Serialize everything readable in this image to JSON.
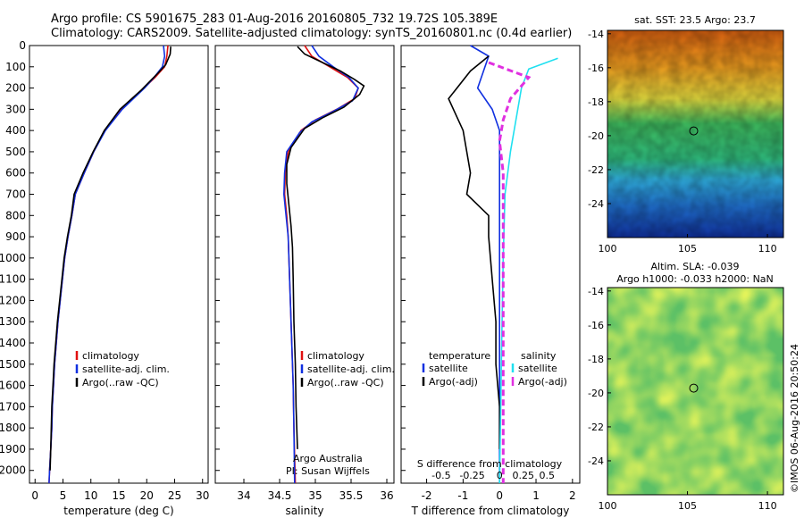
{
  "title": {
    "line1": "Argo profile: CS 5901675_283 01-Aug-2016 20160805_732 19.72S 105.389E",
    "line2": "Climatology: CARS2009. Satellite-adjusted climatology: synTS_20160801.nc (0.4d earlier)"
  },
  "colors": {
    "climatology": "#e01010",
    "satellite": "#1030e0",
    "argo": "#000000",
    "satellite_salinity": "#20e0f0",
    "argo_salinity_adj": "#e030e0"
  },
  "chart_data": [
    {
      "name": "temperature",
      "type": "line",
      "xlabel": "temperature (deg C)",
      "ylabel": "",
      "xlim": [
        -1,
        31
      ],
      "ylim": [
        2060,
        0
      ],
      "xticks": [
        0,
        5,
        10,
        15,
        20,
        25,
        30
      ],
      "yticks": [
        0,
        100,
        200,
        300,
        400,
        500,
        600,
        700,
        800,
        900,
        1000,
        1100,
        1200,
        1300,
        1400,
        1500,
        1600,
        1700,
        1800,
        1900,
        2000
      ],
      "legend": [
        "climatology",
        "satellite-adj. clim.",
        "Argo(..raw -QC)"
      ],
      "series": [
        {
          "name": "climatology",
          "color": "#e01010",
          "points": [
            [
              23.8,
              0
            ],
            [
              23.6,
              50
            ],
            [
              23.2,
              100
            ],
            [
              21.5,
              150
            ],
            [
              19.5,
              200
            ],
            [
              15.5,
              300
            ],
            [
              12.5,
              400
            ],
            [
              10.5,
              500
            ],
            [
              8.8,
              600
            ],
            [
              7.2,
              700
            ],
            [
              6.6,
              800
            ],
            [
              5.9,
              900
            ],
            [
              5.3,
              1000
            ],
            [
              4.9,
              1100
            ],
            [
              4.5,
              1200
            ],
            [
              4.1,
              1300
            ],
            [
              3.8,
              1400
            ],
            [
              3.5,
              1500
            ],
            [
              3.3,
              1600
            ],
            [
              3.1,
              1700
            ],
            [
              3.0,
              1800
            ],
            [
              2.8,
              1900
            ],
            [
              2.6,
              2000
            ],
            [
              2.5,
              2060
            ]
          ]
        },
        {
          "name": "satellite-adj. clim.",
          "color": "#1030e0",
          "points": [
            [
              23.0,
              0
            ],
            [
              23.2,
              50
            ],
            [
              22.8,
              100
            ],
            [
              21.3,
              150
            ],
            [
              19.6,
              200
            ],
            [
              15.6,
              300
            ],
            [
              12.6,
              400
            ],
            [
              10.5,
              500
            ],
            [
              8.8,
              600
            ],
            [
              7.2,
              700
            ],
            [
              6.6,
              800
            ],
            [
              5.9,
              900
            ],
            [
              5.3,
              1000
            ],
            [
              4.9,
              1100
            ],
            [
              4.5,
              1200
            ],
            [
              4.1,
              1300
            ],
            [
              3.8,
              1400
            ],
            [
              3.5,
              1500
            ],
            [
              3.3,
              1600
            ],
            [
              3.1,
              1700
            ],
            [
              3.0,
              1800
            ],
            [
              2.8,
              1900
            ],
            [
              2.6,
              2000
            ],
            [
              2.5,
              2060
            ]
          ]
        },
        {
          "name": "Argo(..raw -QC)",
          "color": "#000000",
          "points": [
            [
              24.3,
              5
            ],
            [
              24.2,
              40
            ],
            [
              23.4,
              90
            ],
            [
              22.0,
              130
            ],
            [
              20.5,
              170
            ],
            [
              19.0,
              210
            ],
            [
              15.2,
              300
            ],
            [
              12.4,
              400
            ],
            [
              10.4,
              500
            ],
            [
              8.6,
              600
            ],
            [
              7.0,
              700
            ],
            [
              6.5,
              800
            ],
            [
              5.8,
              900
            ],
            [
              5.2,
              1000
            ],
            [
              4.8,
              1100
            ],
            [
              4.4,
              1200
            ],
            [
              4.0,
              1300
            ],
            [
              3.7,
              1400
            ],
            [
              3.4,
              1500
            ],
            [
              3.2,
              1600
            ],
            [
              3.0,
              1700
            ],
            [
              2.9,
              1800
            ],
            [
              2.8,
              1900
            ],
            [
              2.7,
              2000
            ]
          ]
        }
      ]
    },
    {
      "name": "salinity",
      "type": "line",
      "xlabel": "salinity",
      "ylabel": "",
      "xlim": [
        33.6,
        36.1
      ],
      "ylim": [
        2060,
        0
      ],
      "xticks": [
        34,
        34.5,
        35,
        35.5,
        36
      ],
      "legend": [
        "climatology",
        "satellite-adj. clim.",
        "Argo(..raw -QC)"
      ],
      "annotations": [
        "Argo Australia",
        "PI: Susan Wijffels"
      ],
      "series": [
        {
          "name": "climatology",
          "color": "#e01010",
          "points": [
            [
              34.85,
              0
            ],
            [
              34.95,
              50
            ],
            [
              35.2,
              100
            ],
            [
              35.45,
              150
            ],
            [
              35.6,
              200
            ],
            [
              35.55,
              250
            ],
            [
              35.3,
              300
            ],
            [
              35.0,
              350
            ],
            [
              34.8,
              400
            ],
            [
              34.62,
              500
            ],
            [
              34.58,
              600
            ],
            [
              34.57,
              700
            ],
            [
              34.6,
              800
            ],
            [
              34.62,
              900
            ],
            [
              34.63,
              1000
            ],
            [
              34.65,
              1200
            ],
            [
              34.67,
              1400
            ],
            [
              34.69,
              1600
            ],
            [
              34.7,
              1800
            ],
            [
              34.72,
              2060
            ]
          ]
        },
        {
          "name": "satellite-adj. clim.",
          "color": "#1030e0",
          "points": [
            [
              34.95,
              0
            ],
            [
              35.05,
              50
            ],
            [
              35.25,
              100
            ],
            [
              35.47,
              150
            ],
            [
              35.6,
              200
            ],
            [
              35.52,
              260
            ],
            [
              35.25,
              310
            ],
            [
              34.95,
              360
            ],
            [
              34.78,
              410
            ],
            [
              34.6,
              500
            ],
            [
              34.57,
              600
            ],
            [
              34.56,
              700
            ],
            [
              34.59,
              800
            ],
            [
              34.62,
              900
            ],
            [
              34.63,
              1000
            ],
            [
              34.65,
              1200
            ],
            [
              34.67,
              1400
            ],
            [
              34.69,
              1600
            ],
            [
              34.7,
              1800
            ],
            [
              34.71,
              2060
            ]
          ]
        },
        {
          "name": "Argo(..raw -QC)",
          "color": "#000000",
          "points": [
            [
              34.75,
              5
            ],
            [
              34.85,
              40
            ],
            [
              35.1,
              80
            ],
            [
              35.35,
              120
            ],
            [
              35.55,
              160
            ],
            [
              35.68,
              190
            ],
            [
              35.62,
              230
            ],
            [
              35.4,
              290
            ],
            [
              35.1,
              340
            ],
            [
              34.85,
              390
            ],
            [
              34.66,
              480
            ],
            [
              34.6,
              560
            ],
            [
              34.6,
              650
            ],
            [
              34.63,
              750
            ],
            [
              34.66,
              850
            ],
            [
              34.68,
              950
            ],
            [
              34.69,
              1100
            ],
            [
              34.7,
              1300
            ],
            [
              34.72,
              1500
            ],
            [
              34.73,
              1700
            ],
            [
              34.75,
              1900
            ]
          ]
        }
      ]
    },
    {
      "name": "difference",
      "type": "line",
      "xlabel": "T difference from climatology",
      "xlabel_top": "S difference from climatology",
      "xlim": [
        -2.7,
        2.2
      ],
      "ylim": [
        2060,
        0
      ],
      "xticks": [
        -2,
        -1,
        0,
        1,
        2
      ],
      "xticks_top": [
        "-0.5",
        "-0.25",
        "0",
        "0.25",
        "0.5"
      ],
      "legend_groups": [
        {
          "title": "temperature",
          "items": [
            "satellite",
            "Argo(-adj)"
          ]
        },
        {
          "title": "salinity",
          "items": [
            "satellite",
            "Argo(-adj)"
          ]
        }
      ],
      "series": [
        {
          "name": "temperature satellite",
          "color": "#1030e0",
          "points": [
            [
              -0.8,
              0
            ],
            [
              -0.3,
              50
            ],
            [
              -0.4,
              100
            ],
            [
              -0.6,
              200
            ],
            [
              -0.2,
              300
            ],
            [
              0,
              400
            ],
            [
              0,
              600
            ],
            [
              0,
              800
            ],
            [
              0,
              1000
            ],
            [
              0,
              1500
            ],
            [
              0,
              2060
            ]
          ]
        },
        {
          "name": "temperature Argo(-adj)",
          "color": "#000000",
          "points": [
            [
              -0.3,
              50
            ],
            [
              -0.8,
              120
            ],
            [
              -1.4,
              250
            ],
            [
              -1.0,
              400
            ],
            [
              -0.9,
              500
            ],
            [
              -0.8,
              600
            ],
            [
              -0.9,
              700
            ],
            [
              -0.3,
              800
            ],
            [
              -0.3,
              900
            ],
            [
              -0.2,
              1100
            ],
            [
              -0.1,
              1300
            ],
            [
              -0.1,
              1500
            ],
            [
              0,
              1700
            ],
            [
              0,
              1900
            ]
          ]
        },
        {
          "name": "salinity satellite",
          "color": "#20e0f0",
          "points": [
            [
              1.6,
              60
            ],
            [
              0.8,
              110
            ],
            [
              0.6,
              200
            ],
            [
              0.5,
              300
            ],
            [
              0.4,
              400
            ],
            [
              0.3,
              500
            ],
            [
              0.15,
              700
            ],
            [
              0.1,
              1000
            ],
            [
              0.05,
              1500
            ],
            [
              0,
              2060
            ]
          ]
        },
        {
          "name": "salinity Argo(-adj)",
          "color": "#e030e0",
          "points": [
            [
              -0.3,
              80
            ],
            [
              0.8,
              150
            ],
            [
              0.3,
              250
            ],
            [
              0.1,
              350
            ],
            [
              0.0,
              450
            ],
            [
              0.1,
              600
            ],
            [
              0.1,
              800
            ],
            [
              0.1,
              1000
            ],
            [
              0.1,
              1500
            ],
            [
              0.1,
              2060
            ]
          ]
        }
      ]
    },
    {
      "name": "sst_map",
      "type": "heatmap",
      "title": "sat. SST: 23.5 Argo: 23.7",
      "xlim": [
        100,
        111
      ],
      "ylim": [
        -26,
        -13.8
      ],
      "xticks": [
        100,
        105,
        110
      ],
      "yticks": [
        -14,
        -16,
        -18,
        -20,
        -22,
        -24
      ],
      "marker": [
        105.389,
        -19.72
      ]
    },
    {
      "name": "sla_map",
      "type": "heatmap",
      "title": "Altim. SLA: -0.039",
      "subtitle": "Argo h1000: -0.033 h2000: NaN",
      "xlim": [
        100,
        111
      ],
      "ylim": [
        -26,
        -13.8
      ],
      "xticks": [
        100,
        105,
        110
      ],
      "yticks": [
        -14,
        -16,
        -18,
        -20,
        -22,
        -24
      ],
      "marker": [
        105.389,
        -19.72
      ]
    }
  ],
  "credit": "©IMOS 06-Aug-2016 20:50:24"
}
